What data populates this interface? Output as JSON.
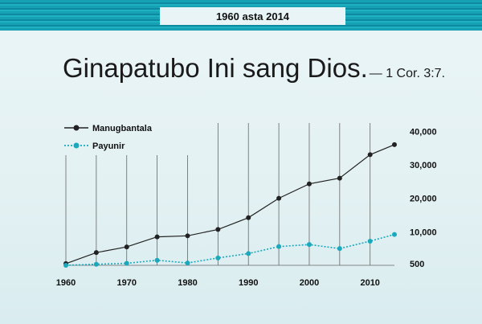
{
  "header": {
    "banner_text": "1960 asta 2014"
  },
  "title": {
    "main": "Ginapatubo Ini sang Dios.",
    "reference": "— 1  Cor.  3:7."
  },
  "colors": {
    "publishers": "#222222",
    "pioneers": "#1aa9bc",
    "banner": "#17a2b4"
  },
  "chart_data": {
    "type": "line",
    "x": [
      1960,
      1965,
      1970,
      1975,
      1980,
      1985,
      1990,
      1995,
      2000,
      2005,
      2010,
      2014
    ],
    "series": [
      {
        "name": "Manugbantala",
        "values": [
          500,
          3800,
          5500,
          8500,
          8800,
          10700,
          14200,
          20000,
          24300,
          26000,
          33000,
          36000
        ]
      },
      {
        "name": "Payunir",
        "values": [
          0,
          300,
          600,
          1500,
          700,
          2200,
          3500,
          5600,
          6200,
          5000,
          7200,
          9200
        ]
      }
    ],
    "x_ticks": [
      "1960",
      "1970",
      "1980",
      "1990",
      "2000",
      "2010"
    ],
    "y_ticks": [
      "500",
      "10,000",
      "20,000",
      "30,000",
      "40,000"
    ],
    "legend": "top-left"
  }
}
